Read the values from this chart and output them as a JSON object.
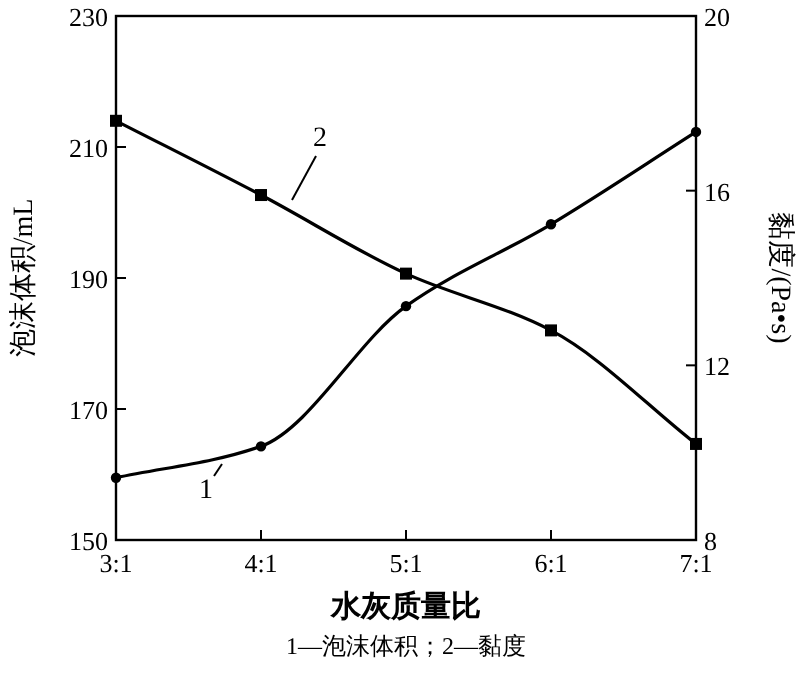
{
  "chart_data": {
    "type": "line",
    "xlabel": "水灰质量比",
    "ylabel": "泡沫体积/mL",
    "y2label": "黏度/(Pa•s)",
    "categories": [
      "3:1",
      "4:1",
      "5:1",
      "6:1",
      "7:1"
    ],
    "ylim": [
      150,
      230
    ],
    "yticks": [
      150,
      170,
      190,
      210,
      230
    ],
    "y2lim": [
      8,
      20
    ],
    "y2ticks": [
      8,
      12,
      16,
      20
    ],
    "series": [
      {
        "color": "#000000",
        "marker": "circle",
        "values": [
          159.5,
          164.3,
          185.7,
          198.2,
          212.3
        ]
      },
      {
        "color": "#000000",
        "marker": "square",
        "axis": "y2",
        "values": [
          17.6,
          15.9,
          14.1,
          12.8,
          10.2
        ]
      }
    ],
    "annotations": [
      "1",
      "2",
      "1—泡沫体积；2—黏度"
    ]
  }
}
